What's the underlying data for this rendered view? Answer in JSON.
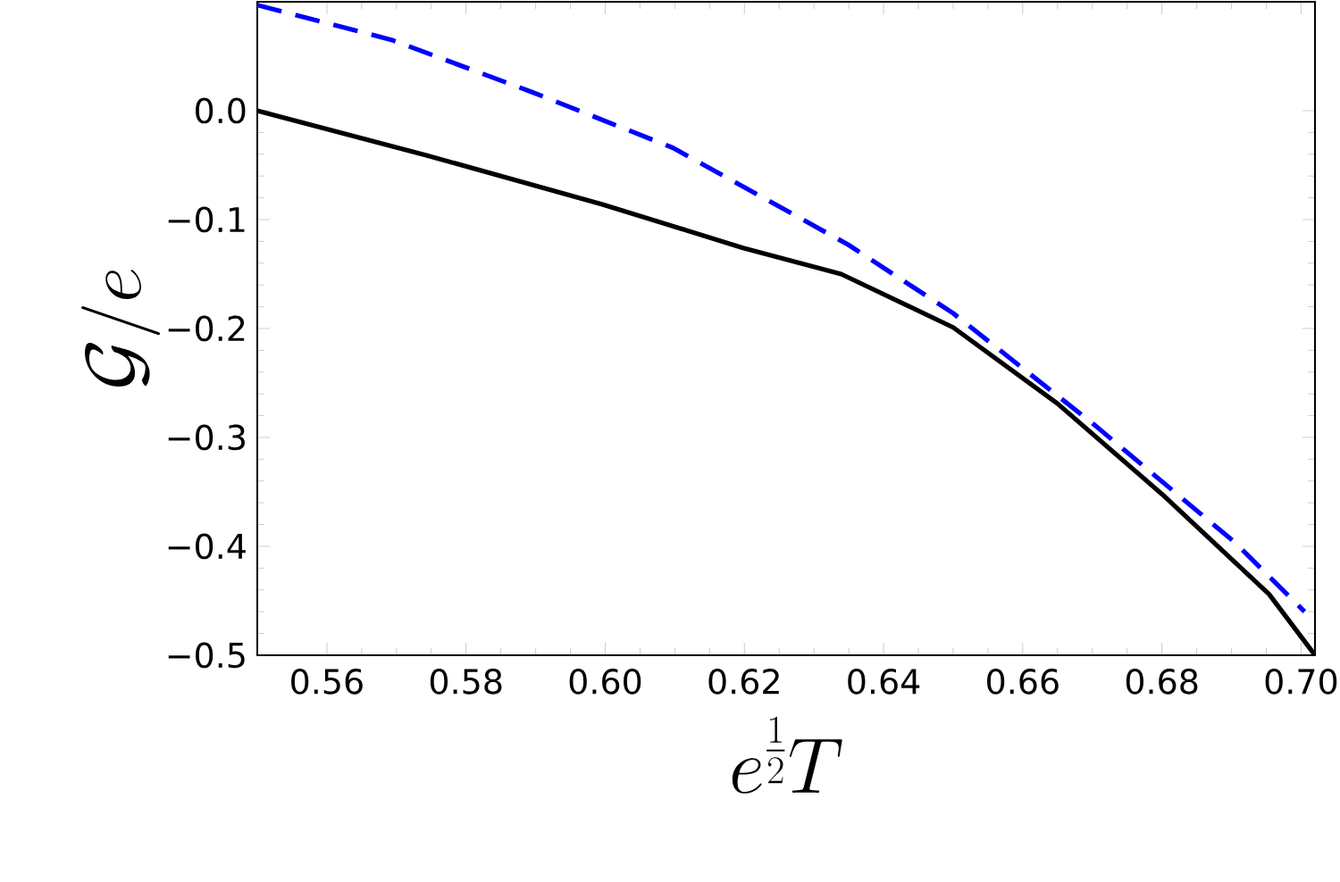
{
  "chart_data": {
    "type": "line",
    "xlabel": "e^{\\frac{1}{2}}T",
    "ylabel": "\\mathcal{G}/e",
    "xlim": [
      0.55,
      0.702
    ],
    "ylim": [
      -0.5,
      0.1
    ],
    "xticks": [
      {
        "value": 0.56,
        "label": "0.56"
      },
      {
        "value": 0.58,
        "label": "0.58"
      },
      {
        "value": 0.6,
        "label": "0.60"
      },
      {
        "value": 0.62,
        "label": "0.62"
      },
      {
        "value": 0.64,
        "label": "0.64"
      },
      {
        "value": 0.66,
        "label": "0.66"
      },
      {
        "value": 0.68,
        "label": "0.68"
      },
      {
        "value": 0.7,
        "label": "0.70"
      }
    ],
    "yticks": [
      {
        "value": -0.5,
        "label": "−0.5"
      },
      {
        "value": -0.4,
        "label": "−0.4"
      },
      {
        "value": -0.3,
        "label": "−0.3"
      },
      {
        "value": -0.2,
        "label": "−0.2"
      },
      {
        "value": -0.1,
        "label": "−0.1"
      },
      {
        "value": 0.0,
        "label": "0.0"
      }
    ],
    "grid": false,
    "marker": "none",
    "series": [
      {
        "color": "#000000",
        "line_style": "solid",
        "x": [
          0.55,
          0.5743,
          0.5996,
          0.6198,
          0.6339,
          0.65,
          0.665,
          0.68,
          0.6954,
          0.702
        ],
        "values": [
          0.0,
          -0.041,
          -0.086,
          -0.126,
          -0.15,
          -0.199,
          -0.269,
          -0.352,
          -0.444,
          -0.5
        ]
      },
      {
        "color": "#0000ff",
        "line_style": "dashed",
        "x": [
          0.55,
          0.5693,
          0.5895,
          0.6097,
          0.6349,
          0.65,
          0.6702,
          0.6904,
          0.7005
        ],
        "values": [
          0.097,
          0.065,
          0.017,
          -0.034,
          -0.123,
          -0.186,
          -0.288,
          -0.396,
          -0.46
        ]
      }
    ]
  }
}
